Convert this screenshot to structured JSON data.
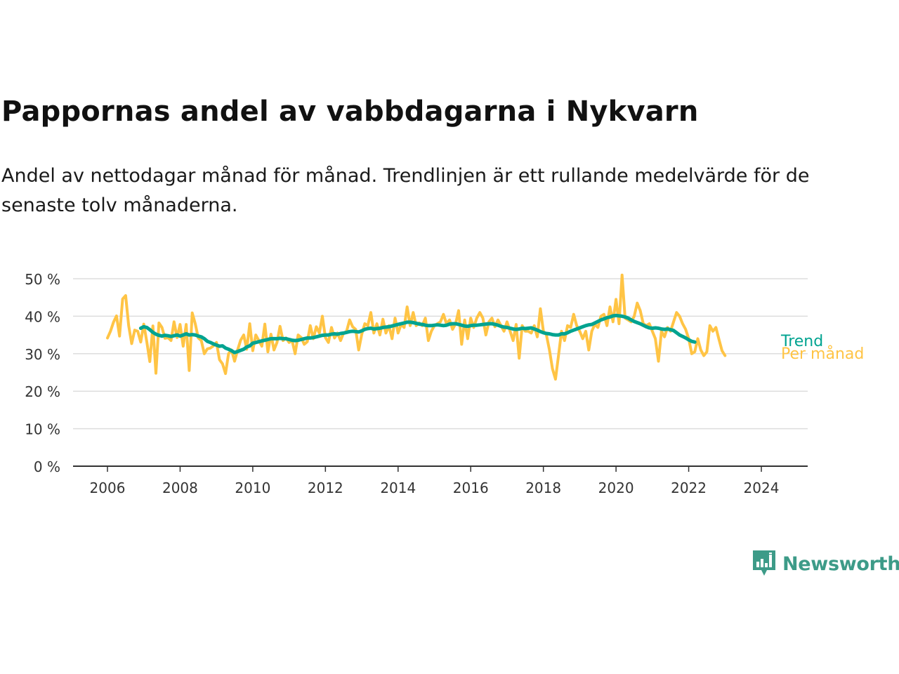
{
  "title": "Pappornas andel av vabbdagarna i Nykvarn",
  "subtitle": "Andel av nettodagar månad för månad. Trendlinjen är ett rullande medelvärde för de senaste tolv månaderna.",
  "logo": {
    "name": "Newsworthy",
    "icon": "newsworthy-bar-chart-icon"
  },
  "colors": {
    "monthly": "#ffc445",
    "trend": "#00a390",
    "grid": "#dddddd",
    "axis": "#333333",
    "tick_text": "#333333",
    "logo": "#3d9b88"
  },
  "chart_data": {
    "type": "line",
    "x_unit": "year",
    "xlim": [
      2006,
      2024.4
    ],
    "ylim": [
      0,
      50
    ],
    "y_ticks": [
      0,
      10,
      20,
      30,
      40,
      50
    ],
    "y_tick_labels": [
      "0 %",
      "10 %",
      "20 %",
      "30 %",
      "40 %",
      "50 %"
    ],
    "x_ticks": [
      2006,
      2008,
      2010,
      2012,
      2014,
      2016,
      2018,
      2020,
      2022,
      2024
    ],
    "x_tick_labels": [
      "2006",
      "2008",
      "2010",
      "2012",
      "2014",
      "2016",
      "2018",
      "2020",
      "2022",
      "2024"
    ],
    "grid": "horizontal",
    "legend": "direct labels at line ends (right)",
    "series": [
      {
        "name": "Per månad",
        "color": "#ffc445",
        "x_start": 2006.0,
        "x_step_months": 1,
        "values": [
          34.2,
          36.0,
          38.4,
          40.1,
          34.7,
          44.6,
          45.5,
          37.5,
          32.7,
          36.3,
          36.0,
          33.1,
          37.9,
          33.2,
          27.9,
          37.4,
          24.8,
          38.2,
          37.0,
          34.1,
          34.3,
          33.5,
          38.5,
          34.3,
          37.8,
          32.0,
          37.8,
          25.5,
          40.9,
          38.0,
          34.2,
          33.5,
          30.0,
          31.3,
          31.5,
          32.1,
          33.0,
          28.4,
          27.3,
          24.7,
          30.0,
          31.0,
          28.0,
          31.0,
          33.6,
          35.0,
          31.2,
          38.0,
          30.8,
          35.0,
          33.5,
          32.0,
          37.9,
          30.5,
          35.2,
          31.0,
          33.0,
          37.3,
          33.5,
          34.2,
          33.0,
          33.5,
          30.0,
          35.0,
          34.3,
          32.5,
          33.2,
          37.5,
          34.0,
          37.2,
          35.5,
          40.0,
          34.3,
          33.0,
          37.0,
          34.2,
          35.5,
          33.5,
          35.5,
          36.0,
          39.0,
          37.2,
          36.5,
          31.0,
          35.2,
          38.0,
          37.5,
          41.0,
          35.5,
          38.0,
          35.0,
          39.2,
          35.5,
          37.5,
          34.0,
          39.5,
          35.5,
          37.8,
          37.0,
          42.5,
          37.5,
          41.0,
          37.5,
          38.2,
          37.5,
          39.5,
          33.5,
          36.0,
          37.5,
          38.0,
          38.5,
          40.5,
          38.0,
          39.0,
          36.5,
          38.0,
          41.5,
          32.5,
          39.0,
          34.0,
          39.5,
          37.0,
          39.5,
          41.0,
          39.5,
          35.0,
          38.5,
          39.5,
          37.2,
          39.0,
          37.5,
          36.0,
          38.5,
          36.0,
          33.5,
          37.8,
          28.8,
          37.5,
          36.0,
          36.0,
          35.5,
          37.5,
          34.5,
          42.0,
          36.0,
          35.0,
          31.0,
          26.0,
          23.2,
          29.5,
          36.0,
          33.5,
          37.5,
          37.0,
          40.5,
          37.5,
          36.0,
          34.0,
          36.0,
          31.0,
          36.0,
          37.8,
          37.0,
          40.0,
          40.5,
          37.5,
          42.5,
          38.5,
          44.5,
          38.0,
          51.0,
          39.5,
          39.0,
          38.5,
          40.0,
          43.5,
          41.5,
          38.0,
          37.5,
          38.0,
          36.0,
          34.0,
          28.0,
          36.0,
          34.5,
          37.0,
          36.0,
          38.5,
          41.0,
          40.0,
          38.0,
          36.5,
          34.0,
          30.0,
          30.5,
          34.0,
          31.0,
          29.5,
          30.5,
          37.5,
          36.0,
          37.0,
          33.8,
          30.8,
          29.5
        ]
      },
      {
        "name": "Trend",
        "color": "#00a390",
        "x_start": 2006.917,
        "x_step_months": 1,
        "values": [
          36.8,
          37.2,
          37.0,
          36.4,
          35.7,
          35.2,
          34.9,
          34.7,
          34.9,
          34.8,
          34.6,
          34.8,
          35.0,
          34.7,
          35.0,
          35.3,
          35.0,
          35.1,
          35.0,
          34.7,
          34.5,
          34.0,
          33.3,
          33.0,
          32.6,
          32.3,
          32.0,
          32.1,
          31.5,
          31.2,
          30.8,
          30.3,
          30.6,
          30.9,
          31.2,
          31.8,
          32.1,
          32.8,
          33.0,
          33.2,
          33.4,
          33.6,
          33.8,
          34.0,
          34.0,
          34.0,
          34.1,
          34.0,
          34.0,
          33.8,
          33.6,
          33.5,
          33.6,
          33.8,
          34.0,
          34.2,
          34.2,
          34.3,
          34.5,
          34.7,
          34.9,
          35.0,
          35.0,
          35.2,
          35.3,
          35.2,
          35.4,
          35.5,
          35.7,
          35.9,
          36.0,
          35.9,
          35.8,
          36.1,
          36.5,
          36.7,
          36.8,
          36.6,
          36.7,
          36.8,
          37.0,
          37.1,
          37.2,
          37.4,
          37.6,
          37.8,
          38.0,
          38.2,
          38.4,
          38.4,
          38.3,
          38.1,
          37.9,
          37.8,
          37.6,
          37.5,
          37.5,
          37.6,
          37.7,
          37.6,
          37.5,
          37.6,
          37.9,
          38.0,
          38.0,
          37.8,
          37.6,
          37.4,
          37.3,
          37.5,
          37.6,
          37.6,
          37.7,
          37.8,
          37.9,
          38.0,
          38.0,
          37.8,
          37.6,
          37.3,
          37.1,
          37.0,
          36.8,
          36.6,
          36.5,
          36.6,
          36.8,
          36.7,
          36.8,
          36.9,
          36.6,
          36.3,
          35.9,
          35.6,
          35.4,
          35.3,
          35.1,
          35.0,
          35.0,
          35.3,
          35.3,
          35.6,
          36.0,
          36.3,
          36.6,
          36.9,
          37.2,
          37.5,
          37.7,
          37.8,
          38.2,
          38.6,
          39.0,
          39.3,
          39.6,
          39.8,
          40.1,
          40.2,
          40.1,
          40.0,
          39.8,
          39.5,
          39.0,
          38.6,
          38.3,
          38.0,
          37.6,
          37.2,
          36.9,
          36.8,
          36.9,
          36.8,
          36.6,
          36.5,
          36.6,
          36.4,
          36.2,
          35.6,
          35.0,
          34.6,
          34.2,
          33.7,
          33.3,
          33.1
        ]
      }
    ]
  }
}
